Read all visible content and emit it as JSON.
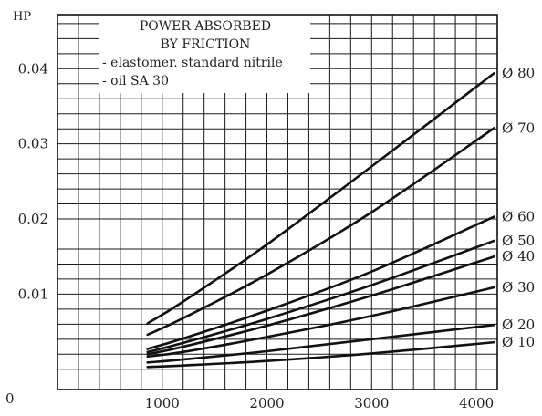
{
  "chart_data": {
    "type": "line",
    "title": "",
    "xlabel": "",
    "ylabel": "HP",
    "xlim": [
      0,
      4200
    ],
    "ylim": [
      -0.0027,
      0.0472
    ],
    "x_ticks": [
      1000,
      2000,
      3000,
      4000
    ],
    "x_tick_labels": [
      "1000",
      "2000",
      "3000",
      "4000"
    ],
    "y_ticks": [
      0.01,
      0.02,
      0.03,
      0.04
    ],
    "y_tick_labels": [
      "0.01",
      "0.02",
      "0.03",
      "0.04"
    ],
    "zero_label": "0",
    "grid": true,
    "legend_box": {
      "position": "top-center",
      "lines": [
        "POWER ABSORBED",
        "BY FRICTION",
        "- elastomer. standard nitrile",
        "- oil SA 30"
      ]
    },
    "series": [
      {
        "name": "Ø 80",
        "x": [
          860,
          1200,
          2000,
          3000,
          4170
        ],
        "y": [
          0.0061,
          0.009,
          0.0166,
          0.027,
          0.0394
        ]
      },
      {
        "name": "Ø 70",
        "x": [
          860,
          1200,
          2000,
          3000,
          4170
        ],
        "y": [
          0.0046,
          0.0068,
          0.0126,
          0.0209,
          0.0321
        ]
      },
      {
        "name": "Ø 60",
        "x": [
          860,
          1200,
          2000,
          3000,
          4170
        ],
        "y": [
          0.0027,
          0.0041,
          0.0078,
          0.013,
          0.0203
        ]
      },
      {
        "name": "Ø 50",
        "x": [
          860,
          1200,
          2000,
          3000,
          4170
        ],
        "y": [
          0.0023,
          0.0035,
          0.0067,
          0.0112,
          0.0171
        ]
      },
      {
        "name": "Ø 40",
        "x": [
          860,
          1200,
          2000,
          3000,
          4170
        ],
        "y": [
          0.002,
          0.003,
          0.0058,
          0.0098,
          0.015
        ]
      },
      {
        "name": "Ø 30",
        "x": [
          860,
          1200,
          2000,
          3000,
          4170
        ],
        "y": [
          0.0017,
          0.0023,
          0.0043,
          0.0071,
          0.0109
        ]
      },
      {
        "name": "Ø 20",
        "x": [
          860,
          1200,
          2000,
          3000,
          4170
        ],
        "y": [
          0.0009,
          0.0013,
          0.0024,
          0.004,
          0.0059
        ]
      },
      {
        "name": "Ø 10",
        "x": [
          860,
          1200,
          2000,
          3000,
          4170
        ],
        "y": [
          0.0003,
          0.0005,
          0.0011,
          0.0021,
          0.0036
        ]
      }
    ]
  }
}
